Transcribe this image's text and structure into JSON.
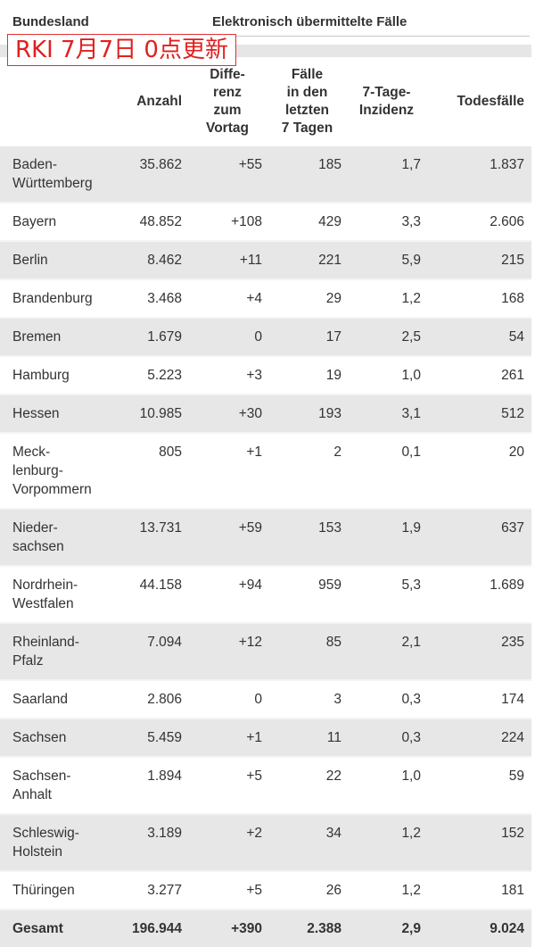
{
  "header": {
    "bundesland": "Bundesland",
    "group_title": "Elektronisch übermittelte Fälle",
    "banner": "RKI 7月7日 0点更新",
    "columns": [
      "Anzahl",
      "Diffe-\nrenz\nzum\nVortag",
      "Fälle\nin den\nletzten\n7 Tagen",
      "7-Tage-\nInzidenz",
      "Todesfälle"
    ]
  },
  "rows": [
    {
      "name": "Baden-\nWürttemberg",
      "anzahl": "35.862",
      "diff": "+55",
      "f7": "185",
      "inz": "1,7",
      "tod": "1.837"
    },
    {
      "name": "Bayern",
      "anzahl": "48.852",
      "diff": "+108",
      "f7": "429",
      "inz": "3,3",
      "tod": "2.606"
    },
    {
      "name": "Berlin",
      "anzahl": "8.462",
      "diff": "+11",
      "f7": "221",
      "inz": "5,9",
      "tod": "215"
    },
    {
      "name": "Brandenburg",
      "anzahl": "3.468",
      "diff": "+4",
      "f7": "29",
      "inz": "1,2",
      "tod": "168"
    },
    {
      "name": "Bremen",
      "anzahl": "1.679",
      "diff": "0",
      "f7": "17",
      "inz": "2,5",
      "tod": "54"
    },
    {
      "name": "Hamburg",
      "anzahl": "5.223",
      "diff": "+3",
      "f7": "19",
      "inz": "1,0",
      "tod": "261"
    },
    {
      "name": "Hessen",
      "anzahl": "10.985",
      "diff": "+30",
      "f7": "193",
      "inz": "3,1",
      "tod": "512"
    },
    {
      "name": "Meck-\nlenburg-\nVorpommern",
      "anzahl": "805",
      "diff": "+1",
      "f7": "2",
      "inz": "0,1",
      "tod": "20"
    },
    {
      "name": "Nieder-\nsachsen",
      "anzahl": "13.731",
      "diff": "+59",
      "f7": "153",
      "inz": "1,9",
      "tod": "637"
    },
    {
      "name": "Nordrhein-\nWestfalen",
      "anzahl": "44.158",
      "diff": "+94",
      "f7": "959",
      "inz": "5,3",
      "tod": "1.689"
    },
    {
      "name": "Rheinland-\nPfalz",
      "anzahl": "7.094",
      "diff": "+12",
      "f7": "85",
      "inz": "2,1",
      "tod": "235"
    },
    {
      "name": "Saarland",
      "anzahl": "2.806",
      "diff": "0",
      "f7": "3",
      "inz": "0,3",
      "tod": "174"
    },
    {
      "name": "Sachsen",
      "anzahl": "5.459",
      "diff": "+1",
      "f7": "11",
      "inz": "0,3",
      "tod": "224"
    },
    {
      "name": "Sachsen-\nAnhalt",
      "anzahl": "1.894",
      "diff": "+5",
      "f7": "22",
      "inz": "1,0",
      "tod": "59"
    },
    {
      "name": "Schleswig-\nHolstein",
      "anzahl": "3.189",
      "diff": "+2",
      "f7": "34",
      "inz": "1,2",
      "tod": "152"
    },
    {
      "name": "Thüringen",
      "anzahl": "3.277",
      "diff": "+5",
      "f7": "26",
      "inz": "1,2",
      "tod": "181"
    }
  ],
  "total": {
    "name": "Gesamt",
    "anzahl": "196.944",
    "diff": "+390",
    "f7": "2.388",
    "inz": "2,9",
    "tod": "9.024"
  }
}
